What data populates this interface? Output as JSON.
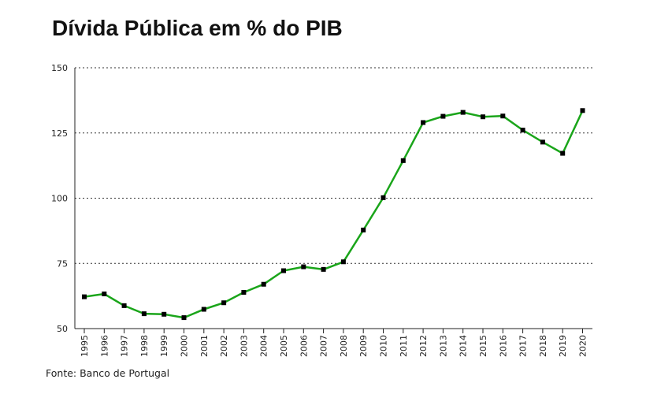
{
  "title": "Dívida Pública em % do PIB",
  "source": "Fonte: Banco de Portugal",
  "chart_data": {
    "type": "line",
    "title": "Dívida Pública em % do PIB",
    "xlabel": "",
    "ylabel": "",
    "categories": [
      "1995",
      "1996",
      "1997",
      "1998",
      "1999",
      "2000",
      "2001",
      "2002",
      "2003",
      "2004",
      "2005",
      "2006",
      "2007",
      "2008",
      "2009",
      "2010",
      "2011",
      "2012",
      "2013",
      "2014",
      "2015",
      "2016",
      "2017",
      "2018",
      "2019",
      "2020"
    ],
    "series": [
      {
        "values": [
          62.2,
          63.3,
          58.8,
          55.7,
          55.5,
          54.2,
          57.4,
          59.9,
          63.9,
          67.0,
          72.2,
          73.7,
          72.7,
          75.6,
          87.8,
          100.2,
          114.4,
          129.0,
          131.4,
          132.9,
          131.2,
          131.5,
          126.1,
          121.5,
          117.2,
          133.6
        ],
        "color": "#1aa51a"
      }
    ],
    "ylim": [
      50,
      150
    ],
    "yticks": [
      "50",
      "75",
      "100",
      "125",
      "150"
    ],
    "grid": true,
    "marker_color": "#000000"
  }
}
